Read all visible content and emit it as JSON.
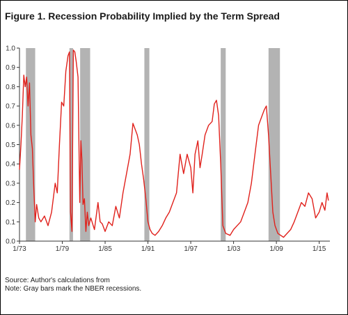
{
  "figure": {
    "title": "Figure 1. Recession Probability Implied by the Term Spread",
    "source": "Source: Author's calculations from",
    "note": "Note: Gray bars mark the NBER recessions."
  },
  "chart_data": {
    "type": "line",
    "title": "Figure 1. Recession Probability Implied by the Term Spread",
    "xlabel": "",
    "ylabel": "",
    "xlim": [
      1973.0,
      2016.5
    ],
    "ylim": [
      0,
      1.0
    ],
    "yticks": [
      0,
      0.1,
      0.2,
      0.3,
      0.4,
      0.5,
      0.6,
      0.7,
      0.8,
      0.9,
      1.0
    ],
    "ytick_labels": [
      "0.0",
      "0.1",
      "0.2",
      "0.3",
      "0.4",
      "0.5",
      "0.6",
      "0.7",
      "0.8",
      "0.9",
      "1.0"
    ],
    "xticks": [
      1973,
      1979,
      1985,
      1991,
      1997,
      2003,
      2009,
      2015
    ],
    "xtick_labels": [
      "1/73",
      "1/79",
      "1/85",
      "1/91",
      "1/97",
      "1/03",
      "1/09",
      "1/15"
    ],
    "grid": false,
    "line_color": "#e0201b",
    "recession_color": "#b3b3b3",
    "recessions": [
      [
        1973.9,
        1975.2
      ],
      [
        1980.0,
        1980.5
      ],
      [
        1981.5,
        1982.9
      ],
      [
        1990.5,
        1991.2
      ],
      [
        2001.2,
        2001.9
      ],
      [
        2007.9,
        2009.5
      ]
    ],
    "series": [
      {
        "name": "",
        "x": [
          1973.0,
          1973.2,
          1973.4,
          1973.6,
          1973.8,
          1974.0,
          1974.2,
          1974.4,
          1974.6,
          1974.8,
          1975.0,
          1975.2,
          1975.4,
          1975.7,
          1976.0,
          1976.5,
          1977.0,
          1977.5,
          1978.0,
          1978.3,
          1978.6,
          1978.9,
          1979.2,
          1979.5,
          1979.8,
          1980.0,
          1980.15,
          1980.35,
          1980.55,
          1980.75,
          1980.95,
          1981.2,
          1981.45,
          1981.6,
          1981.75,
          1981.9,
          1982.1,
          1982.3,
          1982.5,
          1982.7,
          1983.0,
          1983.5,
          1984.0,
          1984.3,
          1984.6,
          1985.0,
          1985.5,
          1986.0,
          1986.5,
          1987.0,
          1987.5,
          1988.0,
          1988.5,
          1988.9,
          1989.2,
          1989.5,
          1989.8,
          1990.1,
          1990.4,
          1990.7,
          1991.0,
          1991.3,
          1991.6,
          1992.0,
          1992.5,
          1993.0,
          1993.5,
          1994.0,
          1994.5,
          1995.0,
          1995.5,
          1996.0,
          1996.5,
          1997.0,
          1997.3,
          1997.6,
          1998.0,
          1998.3,
          1998.6,
          1999.0,
          1999.5,
          2000.0,
          2000.3,
          2000.6,
          2000.9,
          2001.2,
          2001.5,
          2001.9,
          2002.5,
          2003.0,
          2003.5,
          2004.0,
          2004.5,
          2005.0,
          2005.5,
          2006.0,
          2006.5,
          2007.0,
          2007.3,
          2007.6,
          2007.9,
          2008.2,
          2008.5,
          2008.8,
          2009.2,
          2009.6,
          2010.0,
          2010.5,
          2011.0,
          2011.5,
          2012.0,
          2012.5,
          2013.0,
          2013.5,
          2014.0,
          2014.5,
          2015.0,
          2015.4,
          2015.8,
          2016.1,
          2016.3
        ],
        "values": [
          0.37,
          0.5,
          0.65,
          0.86,
          0.8,
          0.85,
          0.7,
          0.82,
          0.55,
          0.48,
          0.28,
          0.1,
          0.19,
          0.12,
          0.1,
          0.13,
          0.08,
          0.15,
          0.3,
          0.25,
          0.5,
          0.72,
          0.7,
          0.88,
          0.96,
          0.98,
          0.15,
          0.05,
          0.99,
          0.98,
          0.93,
          0.85,
          0.2,
          0.52,
          0.42,
          0.19,
          0.22,
          0.05,
          0.15,
          0.08,
          0.12,
          0.06,
          0.2,
          0.1,
          0.09,
          0.05,
          0.1,
          0.08,
          0.18,
          0.12,
          0.25,
          0.35,
          0.45,
          0.61,
          0.58,
          0.55,
          0.5,
          0.4,
          0.32,
          0.22,
          0.1,
          0.06,
          0.04,
          0.03,
          0.05,
          0.08,
          0.12,
          0.15,
          0.2,
          0.25,
          0.45,
          0.35,
          0.45,
          0.38,
          0.25,
          0.45,
          0.52,
          0.38,
          0.45,
          0.55,
          0.6,
          0.62,
          0.71,
          0.73,
          0.65,
          0.4,
          0.08,
          0.04,
          0.03,
          0.06,
          0.08,
          0.1,
          0.15,
          0.2,
          0.3,
          0.45,
          0.6,
          0.65,
          0.68,
          0.7,
          0.55,
          0.35,
          0.15,
          0.08,
          0.04,
          0.03,
          0.02,
          0.04,
          0.06,
          0.1,
          0.15,
          0.2,
          0.18,
          0.25,
          0.22,
          0.12,
          0.15,
          0.2,
          0.16,
          0.25,
          0.21
        ]
      }
    ]
  }
}
